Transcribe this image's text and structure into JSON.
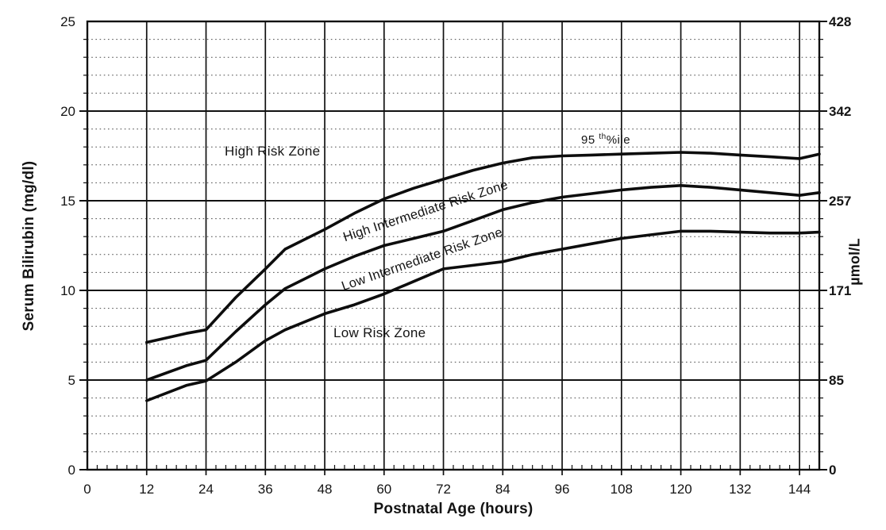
{
  "figure": {
    "background_color": "#ffffff",
    "line_color": "#111111",
    "minor_grid_color": "#4a4a4a"
  },
  "axes": {
    "x_title": "Postnatal Age (hours)",
    "y_left_title": "Serum Bilirubin (mg/dl)",
    "y_right_title": "µmol/L",
    "x_tick_labels": [
      "0",
      "12",
      "24",
      "36",
      "48",
      "60",
      "72",
      "84",
      "96",
      "108",
      "120",
      "132",
      "144"
    ],
    "x_tick_values": [
      0,
      12,
      24,
      36,
      48,
      60,
      72,
      84,
      96,
      108,
      120,
      132,
      144
    ],
    "y_left_tick_labels": [
      "0",
      "5",
      "10",
      "15",
      "20",
      "25"
    ],
    "y_left_tick_values": [
      0,
      5,
      10,
      15,
      20,
      25
    ],
    "y_right_tick_labels": [
      "0",
      "85",
      "171",
      "257",
      "342",
      "428"
    ],
    "y_right_tick_values": [
      0,
      5,
      10,
      15,
      20,
      25
    ]
  },
  "annotations": {
    "high_risk_zone": "High Risk Zone",
    "high_intermediate_zone": "High Intermediate Risk Zone",
    "low_intermediate_zone": "Low Intermediate Risk Zone",
    "low_risk_zone": "Low Risk Zone",
    "percentile_base": "95",
    "percentile_sup": "th",
    "percentile_rest": "%ile"
  },
  "chart_data": {
    "type": "line",
    "title": "",
    "xlabel": "Postnatal Age (hours)",
    "ylabel_left": "Serum Bilirubin (mg/dl)",
    "ylabel_right": "µmol/L",
    "xlim": [
      0,
      148
    ],
    "ylim": [
      0,
      25
    ],
    "x_major_tick_step": 12,
    "x_minor_tick_step": 2,
    "y_major_tick_step": 5,
    "y_minor_tick_step": 1,
    "grid": "horizontal minor dotted every 1 mg/dl; solid major lines every 5 mg/dl; solid vertical lines every 12 h",
    "legend_position": "none",
    "x": [
      12,
      20,
      24,
      30,
      36,
      40,
      48,
      54,
      60,
      66,
      72,
      78,
      84,
      90,
      96,
      102,
      108,
      114,
      120,
      126,
      132,
      138,
      144,
      148
    ],
    "series": [
      {
        "name": "upper curve (95th percentile, High Risk boundary)",
        "annotation": "95th%ile",
        "values": [
          7.1,
          7.6,
          7.8,
          9.6,
          11.2,
          12.3,
          13.4,
          14.3,
          15.1,
          15.7,
          16.2,
          16.7,
          17.1,
          17.4,
          17.5,
          17.55,
          17.6,
          17.65,
          17.7,
          17.65,
          17.55,
          17.45,
          17.35,
          17.6
        ]
      },
      {
        "name": "middle curve (High/Low Intermediate boundary)",
        "annotation": "",
        "values": [
          5.0,
          5.8,
          6.1,
          7.7,
          9.2,
          10.1,
          11.2,
          11.9,
          12.5,
          12.9,
          13.3,
          13.9,
          14.5,
          14.9,
          15.2,
          15.4,
          15.6,
          15.75,
          15.85,
          15.75,
          15.6,
          15.45,
          15.3,
          15.45
        ]
      },
      {
        "name": "lower curve (Low Intermediate/Low Risk boundary)",
        "annotation": "",
        "values": [
          3.85,
          4.7,
          4.95,
          6.0,
          7.2,
          7.8,
          8.7,
          9.2,
          9.8,
          10.5,
          11.2,
          11.4,
          11.6,
          12.0,
          12.3,
          12.6,
          12.9,
          13.1,
          13.3,
          13.3,
          13.25,
          13.2,
          13.2,
          13.25
        ]
      }
    ],
    "zones_top_to_bottom": [
      "High Risk Zone",
      "High Intermediate Risk Zone",
      "Low Intermediate Risk Zone",
      "Low Risk Zone"
    ]
  }
}
